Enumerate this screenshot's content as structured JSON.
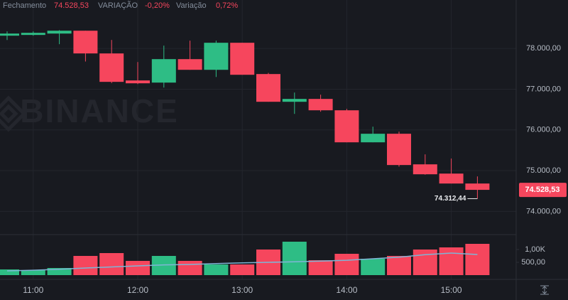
{
  "header": {
    "close_label": "Fechamento",
    "close_value": "74.528,53",
    "change_label": "VARIAÇÃO",
    "change_value": "-0,20%",
    "range_label": "Variação",
    "range_value": "0,72%"
  },
  "chart_data": {
    "type": "candlestick",
    "watermark": "BINANCE",
    "categories": [
      null,
      "11:00",
      null,
      null,
      null,
      "12:00",
      null,
      null,
      null,
      "13:00",
      null,
      null,
      null,
      "14:00",
      null,
      null,
      null,
      "15:00",
      null
    ],
    "open": [
      78314,
      78332,
      78366,
      78436,
      77878,
      77215,
      77162,
      77738,
      77476,
      78140,
      77372,
      76691,
      76761,
      76482,
      75696,
      75906,
      75155,
      74928,
      74684
    ],
    "high": [
      78419,
      78419,
      78450,
      78436,
      78209,
      77668,
      78070,
      78192,
      78192,
      78140,
      77400,
      76918,
      76866,
      76517,
      76080,
      75958,
      75400,
      75298,
      74859
    ],
    "low": [
      78209,
      78314,
      78105,
      77680,
      77150,
      77127,
      77040,
      77476,
      77300,
      77354,
      76691,
      76394,
      76447,
      75696,
      75696,
      75100,
      74900,
      74684,
      74312.44
    ],
    "close": [
      78366,
      78384,
      78436,
      77878,
      77180,
      77145,
      77738,
      77476,
      78140,
      77354,
      76691,
      76761,
      76482,
      75696,
      75906,
      75138,
      74911,
      74684,
      74528.53
    ],
    "volume": [
      222,
      194,
      278,
      750,
      861,
      556,
      750,
      556,
      417,
      417,
      1000,
      1306,
      583,
      833,
      639,
      750,
      1000,
      1083,
      1222
    ],
    "volume_ma": [
      167,
      190,
      230,
      278,
      320,
      360,
      400,
      417,
      450,
      480,
      500,
      520,
      550,
      580,
      639,
      700,
      800,
      861,
      806
    ],
    "up_color": "#2ebd85",
    "down_color": "#f6465d",
    "ma_color": "#7fb5d6",
    "ylim": [
      73430,
      79190
    ],
    "yticks": [
      {
        "value": 74000,
        "label": "74.000,00"
      },
      {
        "value": 75000,
        "label": "75.000,00"
      },
      {
        "value": 76000,
        "label": "76.000,00"
      },
      {
        "value": 77000,
        "label": "77.000,00"
      },
      {
        "value": 78000,
        "label": "78.000,00"
      }
    ],
    "y2lim": [
      0,
      1583
    ],
    "y2ticks": [
      {
        "value": 500,
        "label": "500,00"
      },
      {
        "value": 1000,
        "label": "1,00K"
      }
    ],
    "last_price": {
      "value": 74528.53,
      "label": "74.528,53"
    },
    "low_marker": {
      "value": 74312.44,
      "label": "74.312,44"
    },
    "grid": true
  }
}
